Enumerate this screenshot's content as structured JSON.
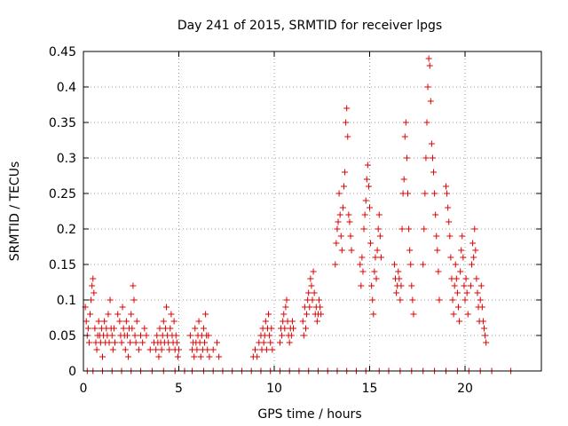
{
  "chart_data": {
    "type": "scatter",
    "title": "Day 241 of 2015, SRMTID for receiver lpgs",
    "xlabel": "GPS time / hours",
    "ylabel": "SRMTID / TECUs",
    "xlim": [
      0,
      24
    ],
    "ylim": [
      0,
      0.45
    ],
    "xticks": [
      "0",
      "5",
      "10",
      "15",
      "20"
    ],
    "yticks": [
      "0",
      "0.05",
      "0.1",
      "0.15",
      "0.2",
      "0.25",
      "0.3",
      "0.35",
      "0.4",
      "0.45"
    ],
    "grid": true,
    "marker": "plus",
    "color": "#e00000",
    "series": [
      {
        "name": "SRMTID",
        "points": [
          [
            0.1,
            0.09
          ],
          [
            0.15,
            0.07
          ],
          [
            0.2,
            0.05
          ],
          [
            0.25,
            0.06
          ],
          [
            0.3,
            0.04
          ],
          [
            0.35,
            0.08
          ],
          [
            0.4,
            0.1
          ],
          [
            0.45,
            0.12
          ],
          [
            0.5,
            0.13
          ],
          [
            0.55,
            0.11
          ],
          [
            0.6,
            0.06
          ],
          [
            0.65,
            0.04
          ],
          [
            0.7,
            0.03
          ],
          [
            0.75,
            0.05
          ],
          [
            0.8,
            0.07
          ],
          [
            0.85,
            0.05
          ],
          [
            0.9,
            0.04
          ],
          [
            0.95,
            0.06
          ],
          [
            1.0,
            0.02
          ],
          [
            1.05,
            0.05
          ],
          [
            1.1,
            0.07
          ],
          [
            1.15,
            0.04
          ],
          [
            1.2,
            0.06
          ],
          [
            1.25,
            0.05
          ],
          [
            1.3,
            0.08
          ],
          [
            1.35,
            0.04
          ],
          [
            1.4,
            0.1
          ],
          [
            1.45,
            0.06
          ],
          [
            1.5,
            0.05
          ],
          [
            1.55,
            0.03
          ],
          [
            1.6,
            0.06
          ],
          [
            1.65,
            0.04
          ],
          [
            1.8,
            0.08
          ],
          [
            1.9,
            0.07
          ],
          [
            1.95,
            0.05
          ],
          [
            2.0,
            0.04
          ],
          [
            2.05,
            0.09
          ],
          [
            2.1,
            0.06
          ],
          [
            2.15,
            0.05
          ],
          [
            2.2,
            0.03
          ],
          [
            2.25,
            0.07
          ],
          [
            2.3,
            0.05
          ],
          [
            2.35,
            0.02
          ],
          [
            2.4,
            0.06
          ],
          [
            2.45,
            0.04
          ],
          [
            2.5,
            0.08
          ],
          [
            2.55,
            0.06
          ],
          [
            2.6,
            0.12
          ],
          [
            2.65,
            0.1
          ],
          [
            2.7,
            0.05
          ],
          [
            2.75,
            0.04
          ],
          [
            2.8,
            0.07
          ],
          [
            2.9,
            0.03
          ],
          [
            3.0,
            0.05
          ],
          [
            3.1,
            0.04
          ],
          [
            3.2,
            0.06
          ],
          [
            3.3,
            0.05
          ],
          [
            3.5,
            0.03
          ],
          [
            3.7,
            0.04
          ],
          [
            3.8,
            0.03
          ],
          [
            3.85,
            0.05
          ],
          [
            3.9,
            0.04
          ],
          [
            3.95,
            0.02
          ],
          [
            4.0,
            0.06
          ],
          [
            4.05,
            0.04
          ],
          [
            4.1,
            0.03
          ],
          [
            4.15,
            0.05
          ],
          [
            4.2,
            0.07
          ],
          [
            4.25,
            0.04
          ],
          [
            4.3,
            0.06
          ],
          [
            4.35,
            0.09
          ],
          [
            4.4,
            0.05
          ],
          [
            4.45,
            0.04
          ],
          [
            4.5,
            0.03
          ],
          [
            4.55,
            0.06
          ],
          [
            4.6,
            0.08
          ],
          [
            4.65,
            0.05
          ],
          [
            4.7,
            0.04
          ],
          [
            4.75,
            0.07
          ],
          [
            4.8,
            0.03
          ],
          [
            4.85,
            0.05
          ],
          [
            4.9,
            0.04
          ],
          [
            4.95,
            0.02
          ],
          [
            5.0,
            0.03
          ],
          [
            5.6,
            0.05
          ],
          [
            5.7,
            0.03
          ],
          [
            5.75,
            0.04
          ],
          [
            5.8,
            0.02
          ],
          [
            5.85,
            0.06
          ],
          [
            5.9,
            0.04
          ],
          [
            5.95,
            0.03
          ],
          [
            6.0,
            0.05
          ],
          [
            6.05,
            0.07
          ],
          [
            6.1,
            0.04
          ],
          [
            6.15,
            0.02
          ],
          [
            6.2,
            0.05
          ],
          [
            6.25,
            0.03
          ],
          [
            6.3,
            0.06
          ],
          [
            6.35,
            0.04
          ],
          [
            6.4,
            0.08
          ],
          [
            6.45,
            0.05
          ],
          [
            6.5,
            0.03
          ],
          [
            6.55,
            0.05
          ],
          [
            6.6,
            0.02
          ],
          [
            6.8,
            0.03
          ],
          [
            7.0,
            0.04
          ],
          [
            7.1,
            0.02
          ],
          [
            8.9,
            0.02
          ],
          [
            9.0,
            0.03
          ],
          [
            9.1,
            0.02
          ],
          [
            9.2,
            0.04
          ],
          [
            9.3,
            0.05
          ],
          [
            9.35,
            0.03
          ],
          [
            9.4,
            0.06
          ],
          [
            9.45,
            0.04
          ],
          [
            9.5,
            0.05
          ],
          [
            9.55,
            0.07
          ],
          [
            9.6,
            0.03
          ],
          [
            9.65,
            0.06
          ],
          [
            9.7,
            0.08
          ],
          [
            9.75,
            0.05
          ],
          [
            9.8,
            0.04
          ],
          [
            9.85,
            0.06
          ],
          [
            9.9,
            0.03
          ],
          [
            10.3,
            0.04
          ],
          [
            10.35,
            0.06
          ],
          [
            10.4,
            0.05
          ],
          [
            10.45,
            0.07
          ],
          [
            10.5,
            0.08
          ],
          [
            10.55,
            0.06
          ],
          [
            10.6,
            0.09
          ],
          [
            10.65,
            0.1
          ],
          [
            10.7,
            0.07
          ],
          [
            10.75,
            0.05
          ],
          [
            10.8,
            0.04
          ],
          [
            10.85,
            0.06
          ],
          [
            10.9,
            0.05
          ],
          [
            10.95,
            0.07
          ],
          [
            11.0,
            0.06
          ],
          [
            11.5,
            0.07
          ],
          [
            11.55,
            0.05
          ],
          [
            11.6,
            0.09
          ],
          [
            11.65,
            0.06
          ],
          [
            11.7,
            0.08
          ],
          [
            11.75,
            0.1
          ],
          [
            11.8,
            0.11
          ],
          [
            11.85,
            0.09
          ],
          [
            11.9,
            0.13
          ],
          [
            11.95,
            0.12
          ],
          [
            12.0,
            0.1
          ],
          [
            12.05,
            0.14
          ],
          [
            12.1,
            0.11
          ],
          [
            12.15,
            0.08
          ],
          [
            12.2,
            0.09
          ],
          [
            12.25,
            0.07
          ],
          [
            12.3,
            0.08
          ],
          [
            12.35,
            0.1
          ],
          [
            12.4,
            0.09
          ],
          [
            12.45,
            0.08
          ],
          [
            13.2,
            0.15
          ],
          [
            13.25,
            0.18
          ],
          [
            13.3,
            0.2
          ],
          [
            13.35,
            0.21
          ],
          [
            13.4,
            0.25
          ],
          [
            13.45,
            0.22
          ],
          [
            13.5,
            0.19
          ],
          [
            13.55,
            0.17
          ],
          [
            13.6,
            0.23
          ],
          [
            13.65,
            0.26
          ],
          [
            13.7,
            0.28
          ],
          [
            13.75,
            0.35
          ],
          [
            13.8,
            0.37
          ],
          [
            13.85,
            0.33
          ],
          [
            13.9,
            0.22
          ],
          [
            13.95,
            0.21
          ],
          [
            14.0,
            0.19
          ],
          [
            14.05,
            0.17
          ],
          [
            14.5,
            0.15
          ],
          [
            14.55,
            0.12
          ],
          [
            14.6,
            0.16
          ],
          [
            14.65,
            0.14
          ],
          [
            14.7,
            0.2
          ],
          [
            14.75,
            0.22
          ],
          [
            14.8,
            0.24
          ],
          [
            14.85,
            0.27
          ],
          [
            14.9,
            0.29
          ],
          [
            14.95,
            0.26
          ],
          [
            15.0,
            0.23
          ],
          [
            15.05,
            0.18
          ],
          [
            15.1,
            0.12
          ],
          [
            15.15,
            0.1
          ],
          [
            15.2,
            0.08
          ],
          [
            15.25,
            0.14
          ],
          [
            15.3,
            0.16
          ],
          [
            15.35,
            0.13
          ],
          [
            15.4,
            0.17
          ],
          [
            15.45,
            0.2
          ],
          [
            15.5,
            0.22
          ],
          [
            15.55,
            0.19
          ],
          [
            15.6,
            0.16
          ],
          [
            16.3,
            0.15
          ],
          [
            16.35,
            0.13
          ],
          [
            16.4,
            0.11
          ],
          [
            16.45,
            0.12
          ],
          [
            16.5,
            0.14
          ],
          [
            16.55,
            0.13
          ],
          [
            16.6,
            0.1
          ],
          [
            16.65,
            0.12
          ],
          [
            16.7,
            0.2
          ],
          [
            16.75,
            0.25
          ],
          [
            16.8,
            0.27
          ],
          [
            16.85,
            0.33
          ],
          [
            16.9,
            0.35
          ],
          [
            16.95,
            0.3
          ],
          [
            17.0,
            0.25
          ],
          [
            17.05,
            0.2
          ],
          [
            17.1,
            0.17
          ],
          [
            17.15,
            0.15
          ],
          [
            17.2,
            0.12
          ],
          [
            17.25,
            0.1
          ],
          [
            17.3,
            0.08
          ],
          [
            17.8,
            0.15
          ],
          [
            17.85,
            0.2
          ],
          [
            17.9,
            0.25
          ],
          [
            17.95,
            0.3
          ],
          [
            18.0,
            0.35
          ],
          [
            18.05,
            0.4
          ],
          [
            18.1,
            0.44
          ],
          [
            18.15,
            0.43
          ],
          [
            18.2,
            0.38
          ],
          [
            18.25,
            0.32
          ],
          [
            18.3,
            0.3
          ],
          [
            18.35,
            0.28
          ],
          [
            18.4,
            0.25
          ],
          [
            18.45,
            0.22
          ],
          [
            18.5,
            0.19
          ],
          [
            18.55,
            0.17
          ],
          [
            18.6,
            0.14
          ],
          [
            18.65,
            0.1
          ],
          [
            19.0,
            0.26
          ],
          [
            19.05,
            0.25
          ],
          [
            19.1,
            0.23
          ],
          [
            19.15,
            0.21
          ],
          [
            19.2,
            0.19
          ],
          [
            19.25,
            0.16
          ],
          [
            19.3,
            0.13
          ],
          [
            19.35,
            0.1
          ],
          [
            19.4,
            0.08
          ],
          [
            19.45,
            0.12
          ],
          [
            19.5,
            0.15
          ],
          [
            19.55,
            0.13
          ],
          [
            19.6,
            0.11
          ],
          [
            19.65,
            0.09
          ],
          [
            19.7,
            0.07
          ],
          [
            19.75,
            0.14
          ],
          [
            19.8,
            0.17
          ],
          [
            19.85,
            0.19
          ],
          [
            19.9,
            0.16
          ],
          [
            19.95,
            0.12
          ],
          [
            20.0,
            0.1
          ],
          [
            20.05,
            0.13
          ],
          [
            20.1,
            0.11
          ],
          [
            20.15,
            0.08
          ],
          [
            20.3,
            0.12
          ],
          [
            20.35,
            0.15
          ],
          [
            20.4,
            0.18
          ],
          [
            20.45,
            0.16
          ],
          [
            20.5,
            0.2
          ],
          [
            20.55,
            0.17
          ],
          [
            20.6,
            0.13
          ],
          [
            20.65,
            0.11
          ],
          [
            20.7,
            0.09
          ],
          [
            20.75,
            0.07
          ],
          [
            20.8,
            0.1
          ],
          [
            20.85,
            0.12
          ],
          [
            20.9,
            0.09
          ],
          [
            20.95,
            0.07
          ],
          [
            21.0,
            0.06
          ],
          [
            21.05,
            0.05
          ],
          [
            21.1,
            0.04
          ],
          [
            0.2,
            0.0
          ],
          [
            0.5,
            0.0
          ],
          [
            1.0,
            0.0
          ],
          [
            1.5,
            0.0
          ],
          [
            2.0,
            0.0
          ],
          [
            2.5,
            0.0
          ],
          [
            3.0,
            0.0
          ],
          [
            3.6,
            0.0
          ],
          [
            4.2,
            0.0
          ],
          [
            4.8,
            0.0
          ],
          [
            5.3,
            0.0
          ],
          [
            5.7,
            0.0
          ],
          [
            6.3,
            0.0
          ],
          [
            6.8,
            0.0
          ],
          [
            7.3,
            0.0
          ],
          [
            7.8,
            0.0
          ],
          [
            8.3,
            0.0
          ],
          [
            8.8,
            0.0
          ],
          [
            9.3,
            0.0
          ],
          [
            9.8,
            0.0
          ],
          [
            10.3,
            0.0
          ],
          [
            10.8,
            0.0
          ],
          [
            11.3,
            0.0
          ],
          [
            11.8,
            0.0
          ],
          [
            12.3,
            0.0
          ],
          [
            12.8,
            0.0
          ],
          [
            13.3,
            0.0
          ],
          [
            13.8,
            0.0
          ],
          [
            14.3,
            0.0
          ],
          [
            14.8,
            0.0
          ],
          [
            15.5,
            0.0
          ],
          [
            16.0,
            0.0
          ],
          [
            16.6,
            0.0
          ],
          [
            17.2,
            0.0
          ],
          [
            17.8,
            0.0
          ],
          [
            18.4,
            0.0
          ],
          [
            19.0,
            0.0
          ],
          [
            19.6,
            0.0
          ],
          [
            20.2,
            0.0
          ],
          [
            20.8,
            0.0
          ],
          [
            21.4,
            0.0
          ],
          [
            22.4,
            0.0
          ]
        ]
      }
    ]
  }
}
